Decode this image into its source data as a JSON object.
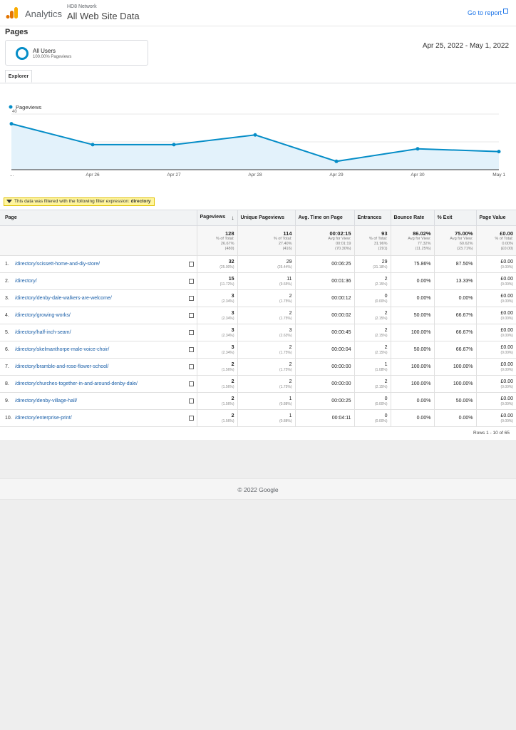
{
  "header": {
    "brand": "Analytics",
    "network": "HD8 Network",
    "view": "All Web Site Data",
    "goto_report": "Go to report"
  },
  "page_title": "Pages",
  "segment": {
    "name": "All Users",
    "sub": "100.00% Pageviews"
  },
  "date_range": "Apr 25, 2022 - May 1, 2022",
  "tab": "Explorer",
  "chart_data": {
    "type": "area",
    "series": [
      {
        "name": "Pageviews",
        "values": [
          33,
          18,
          18,
          25,
          6,
          15,
          13
        ]
      }
    ],
    "categories": [
      "...",
      "Apr 26",
      "Apr 27",
      "Apr 28",
      "Apr 29",
      "Apr 30",
      "May 1"
    ],
    "yticks": [
      "40",
      "20"
    ],
    "ylim": [
      0,
      40
    ],
    "color": "#058dc7",
    "fill": "#e3f2fb",
    "legend": "top-left"
  },
  "filter": {
    "text": "This data was filtered with the following filter expression:",
    "expression": "directory"
  },
  "table": {
    "headers": [
      "Page",
      "Pageviews",
      "Unique Pageviews",
      "Avg. Time on Page",
      "Entrances",
      "Bounce Rate",
      "% Exit",
      "Page Value"
    ],
    "totals": [
      {
        "val": "128",
        "sub": [
          "% of Total:",
          "26.67%",
          "(480)"
        ]
      },
      {
        "val": "114",
        "sub": [
          "% of Total:",
          "27.40%",
          "(416)"
        ]
      },
      {
        "val": "00:02:15",
        "sub": [
          "Avg for View:",
          "00:01:19",
          "(70.30%)"
        ]
      },
      {
        "val": "93",
        "sub": [
          "% of Total:",
          "31.96%",
          "(291)"
        ]
      },
      {
        "val": "86.02%",
        "sub": [
          "Avg for View:",
          "77.32%",
          "(11.25%)"
        ]
      },
      {
        "val": "75.00%",
        "sub": [
          "Avg for View:",
          "60.62%",
          "(23.71%)"
        ]
      },
      {
        "val": "£0.00",
        "sub": [
          "% of Total:",
          "0.00%",
          "(£0.00)"
        ]
      }
    ],
    "rows": [
      {
        "num": "1.",
        "page": "/directory/scissett-home-and-diy-store/",
        "pv": "32",
        "pv_pct": "(25.00%)",
        "upv": "29",
        "upv_pct": "(25.44%)",
        "avg": "00:06:25",
        "ent": "29",
        "ent_pct": "(31.18%)",
        "bounce": "75.86%",
        "exit": "87.50%",
        "value": "£0.00",
        "value_pct": "(0.00%)"
      },
      {
        "num": "2.",
        "page": "/directory/",
        "pv": "15",
        "pv_pct": "(11.72%)",
        "upv": "11",
        "upv_pct": "(9.65%)",
        "avg": "00:01:36",
        "ent": "2",
        "ent_pct": "(2.15%)",
        "bounce": "0.00%",
        "exit": "13.33%",
        "value": "£0.00",
        "value_pct": "(0.00%)"
      },
      {
        "num": "3.",
        "page": "/directory/denby-dale-walkers-are-welcome/",
        "pv": "3",
        "pv_pct": "(2.34%)",
        "upv": "2",
        "upv_pct": "(1.75%)",
        "avg": "00:00:12",
        "ent": "0",
        "ent_pct": "(0.00%)",
        "bounce": "0.00%",
        "exit": "0.00%",
        "value": "£0.00",
        "value_pct": "(0.00%)"
      },
      {
        "num": "4.",
        "page": "/directory/growing-works/",
        "pv": "3",
        "pv_pct": "(2.34%)",
        "upv": "2",
        "upv_pct": "(1.75%)",
        "avg": "00:00:02",
        "ent": "2",
        "ent_pct": "(2.15%)",
        "bounce": "50.00%",
        "exit": "66.67%",
        "value": "£0.00",
        "value_pct": "(0.00%)"
      },
      {
        "num": "5.",
        "page": "/directory/half-inch-seam/",
        "pv": "3",
        "pv_pct": "(2.34%)",
        "upv": "3",
        "upv_pct": "(2.63%)",
        "avg": "00:00:45",
        "ent": "2",
        "ent_pct": "(2.15%)",
        "bounce": "100.00%",
        "exit": "66.67%",
        "value": "£0.00",
        "value_pct": "(0.00%)"
      },
      {
        "num": "6.",
        "page": "/directory/skelmanthorpe-male-voice-choir/",
        "pv": "3",
        "pv_pct": "(2.34%)",
        "upv": "2",
        "upv_pct": "(1.75%)",
        "avg": "00:00:04",
        "ent": "2",
        "ent_pct": "(2.15%)",
        "bounce": "50.00%",
        "exit": "66.67%",
        "value": "£0.00",
        "value_pct": "(0.00%)"
      },
      {
        "num": "7.",
        "page": "/directory/bramble-and-rose-flower-school/",
        "pv": "2",
        "pv_pct": "(1.56%)",
        "upv": "2",
        "upv_pct": "(1.75%)",
        "avg": "00:00:00",
        "ent": "1",
        "ent_pct": "(1.08%)",
        "bounce": "100.00%",
        "exit": "100.00%",
        "value": "£0.00",
        "value_pct": "(0.00%)"
      },
      {
        "num": "8.",
        "page": "/directory/churches-together-in-and-around-denby-dale/",
        "pv": "2",
        "pv_pct": "(1.56%)",
        "upv": "2",
        "upv_pct": "(1.75%)",
        "avg": "00:00:00",
        "ent": "2",
        "ent_pct": "(2.15%)",
        "bounce": "100.00%",
        "exit": "100.00%",
        "value": "£0.00",
        "value_pct": "(0.00%)"
      },
      {
        "num": "9.",
        "page": "/directory/denby-village-hall/",
        "pv": "2",
        "pv_pct": "(1.56%)",
        "upv": "1",
        "upv_pct": "(0.88%)",
        "avg": "00:00:25",
        "ent": "0",
        "ent_pct": "(0.00%)",
        "bounce": "0.00%",
        "exit": "50.00%",
        "value": "£0.00",
        "value_pct": "(0.00%)"
      },
      {
        "num": "10.",
        "page": "/directory/enterprise-print/",
        "pv": "2",
        "pv_pct": "(1.56%)",
        "upv": "1",
        "upv_pct": "(0.88%)",
        "avg": "00:04:11",
        "ent": "0",
        "ent_pct": "(0.00%)",
        "bounce": "0.00%",
        "exit": "0.00%",
        "value": "£0.00",
        "value_pct": "(0.00%)"
      }
    ]
  },
  "rows_info": "Rows 1 - 10 of 65",
  "footer": "© 2022 Google"
}
